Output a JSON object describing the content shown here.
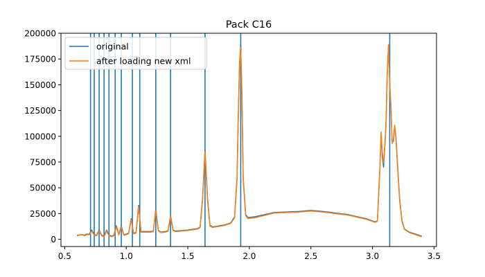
{
  "chart_data": {
    "type": "line",
    "title": "Pack C16",
    "xlabel": "",
    "ylabel": "",
    "xlim": [
      0.47,
      3.52
    ],
    "ylim": [
      -7000,
      200000
    ],
    "xticks": [
      0.5,
      1.0,
      1.5,
      2.0,
      2.5,
      3.0,
      3.5
    ],
    "xtick_labels": [
      "0.5",
      "1.0",
      "1.5",
      "2.0",
      "2.5",
      "3.0",
      "3.5"
    ],
    "yticks": [
      0,
      25000,
      50000,
      75000,
      100000,
      125000,
      150000,
      175000,
      200000
    ],
    "ytick_labels": [
      "0",
      "25000",
      "50000",
      "75000",
      "100000",
      "125000",
      "150000",
      "175000",
      "200000"
    ],
    "grid": false,
    "legend_position": "top-left",
    "vlines": {
      "color": "#1f77b4",
      "x": [
        0.71,
        0.74,
        0.78,
        0.82,
        0.86,
        0.91,
        0.96,
        1.05,
        1.11,
        1.24,
        1.36,
        1.64,
        1.93,
        3.14
      ]
    },
    "series": [
      {
        "name": "original",
        "color": "#1f77b4",
        "x": [
          0.6,
          0.64,
          0.66,
          0.68,
          0.7,
          0.72,
          0.74,
          0.76,
          0.78,
          0.8,
          0.82,
          0.84,
          0.86,
          0.88,
          0.9,
          0.92,
          0.94,
          0.96,
          0.98,
          1.0,
          1.02,
          1.04,
          1.06,
          1.08,
          1.1,
          1.12,
          1.14,
          1.2,
          1.22,
          1.24,
          1.26,
          1.28,
          1.32,
          1.34,
          1.36,
          1.38,
          1.4,
          1.5,
          1.58,
          1.6,
          1.62,
          1.64,
          1.66,
          1.68,
          1.7,
          1.8,
          1.85,
          1.88,
          1.9,
          1.91,
          1.92,
          1.93,
          1.94,
          1.95,
          1.97,
          1.99,
          2.05,
          2.2,
          2.4,
          2.5,
          2.6,
          2.8,
          2.95,
          3.02,
          3.04,
          3.06,
          3.07,
          3.08,
          3.09,
          3.1,
          3.11,
          3.12,
          3.13,
          3.14,
          3.15,
          3.16,
          3.17,
          3.18,
          3.19,
          3.2,
          3.22,
          3.24,
          3.26,
          3.3,
          3.35,
          3.4
        ],
        "y": [
          4000,
          4500,
          4000,
          5000,
          5000,
          9000,
          4500,
          4000,
          9000,
          4000,
          3000,
          9000,
          4000,
          3000,
          4000,
          13000,
          4500,
          13000,
          4500,
          5000,
          6000,
          20000,
          6000,
          6500,
          33000,
          7500,
          7500,
          7500,
          8000,
          29000,
          9000,
          7000,
          7500,
          8500,
          23000,
          9000,
          8000,
          9000,
          10500,
          12000,
          40000,
          87000,
          40000,
          14000,
          12000,
          14000,
          16000,
          22000,
          60000,
          120000,
          170000,
          189000,
          140000,
          60000,
          24000,
          21000,
          22000,
          26000,
          27000,
          28000,
          27000,
          24000,
          20000,
          17000,
          18000,
          70000,
          100000,
          80000,
          70000,
          90000,
          110000,
          160000,
          188000,
          150000,
          130000,
          95000,
          95000,
          110000,
          100000,
          80000,
          40000,
          18000,
          10000,
          7000,
          5000,
          3000
        ]
      },
      {
        "name": "after loading new xml",
        "color": "#ff7f0e",
        "x": [
          0.6,
          0.64,
          0.66,
          0.68,
          0.7,
          0.72,
          0.74,
          0.76,
          0.78,
          0.8,
          0.82,
          0.84,
          0.86,
          0.88,
          0.9,
          0.92,
          0.94,
          0.96,
          0.98,
          1.0,
          1.02,
          1.04,
          1.06,
          1.08,
          1.1,
          1.12,
          1.14,
          1.2,
          1.22,
          1.24,
          1.26,
          1.28,
          1.32,
          1.34,
          1.36,
          1.38,
          1.4,
          1.5,
          1.58,
          1.6,
          1.62,
          1.64,
          1.66,
          1.68,
          1.7,
          1.8,
          1.85,
          1.88,
          1.9,
          1.91,
          1.92,
          1.93,
          1.94,
          1.95,
          1.97,
          1.99,
          2.05,
          2.2,
          2.4,
          2.5,
          2.6,
          2.8,
          2.95,
          3.02,
          3.04,
          3.06,
          3.07,
          3.08,
          3.09,
          3.1,
          3.11,
          3.12,
          3.13,
          3.14,
          3.15,
          3.16,
          3.17,
          3.18,
          3.19,
          3.2,
          3.22,
          3.24,
          3.26,
          3.3,
          3.35,
          3.4
        ],
        "y": [
          3500,
          4500,
          3500,
          4500,
          4500,
          8000,
          4000,
          3500,
          8000,
          3500,
          2500,
          8000,
          3500,
          2500,
          3500,
          12000,
          4000,
          12000,
          4000,
          4500,
          5500,
          19000,
          5500,
          6000,
          32000,
          7000,
          7000,
          7000,
          7500,
          28000,
          8500,
          6500,
          7000,
          8000,
          22000,
          8500,
          7500,
          8500,
          10000,
          11500,
          38000,
          85000,
          38000,
          13000,
          11500,
          13500,
          15500,
          21000,
          58000,
          115000,
          168000,
          186000,
          135000,
          58000,
          23000,
          20000,
          21000,
          25500,
          26500,
          27500,
          26500,
          23500,
          19500,
          16500,
          17500,
          68000,
          104000,
          84000,
          74000,
          92000,
          112000,
          162000,
          189000,
          148000,
          126000,
          93000,
          97000,
          111000,
          98000,
          78000,
          38000,
          17000,
          9500,
          6500,
          4500,
          2500
        ]
      }
    ]
  }
}
